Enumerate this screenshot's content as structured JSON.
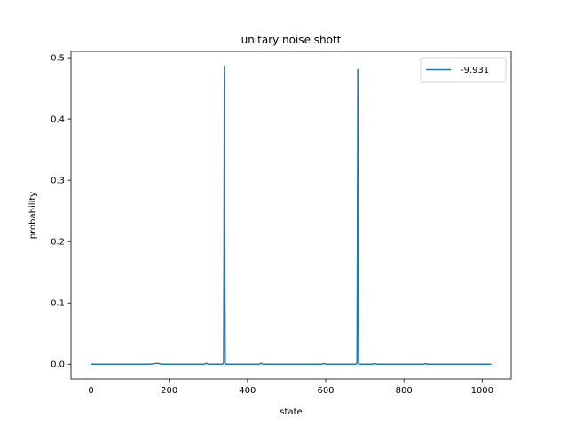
{
  "chart_data": {
    "type": "line",
    "title": "unitary noise shott",
    "xlabel": "state",
    "ylabel": "probability",
    "xlim": [
      -51.15,
      1074.15
    ],
    "ylim": [
      -0.0243,
      0.5103
    ],
    "xticks": [
      0,
      200,
      400,
      600,
      800,
      1000
    ],
    "yticks": [
      0.0,
      0.1,
      0.2,
      0.3,
      0.4,
      0.5
    ],
    "xtick_labels": [
      "0",
      "200",
      "400",
      "600",
      "800",
      "1000"
    ],
    "ytick_labels": [
      "0.0",
      "0.1",
      "0.2",
      "0.3",
      "0.4",
      "0.5"
    ],
    "legend_position": "top-right",
    "grid": false,
    "series": [
      {
        "name": "-9.931",
        "color": "#1f77b4",
        "x": [
          0,
          100,
          150,
          170,
          180,
          200,
          250,
          290,
          295,
          300,
          335,
          339,
          340,
          341,
          342,
          343,
          344,
          345,
          350,
          400,
          430,
          435,
          440,
          500,
          590,
          595,
          600,
          640,
          677,
          680,
          681,
          682,
          683,
          684,
          685,
          690,
          700,
          720,
          725,
          730,
          800,
          850,
          855,
          860,
          900,
          1023
        ],
        "y": [
          0.0,
          0.0,
          0.0,
          0.0015,
          0.0,
          0.0,
          0.0,
          0.0,
          0.0015,
          0.0,
          0.0,
          0.002,
          0.2,
          0.486,
          0.2,
          0.002,
          0.0,
          0.0,
          0.0,
          0.0,
          0.0,
          0.0015,
          0.0,
          0.0,
          0.0,
          0.0012,
          0.0,
          0.0,
          0.0,
          0.002,
          0.2,
          0.481,
          0.2,
          0.002,
          0.0,
          0.0,
          0.0,
          0.0,
          0.0012,
          0.0,
          0.0,
          0.0,
          0.001,
          0.0,
          0.0,
          0.0
        ]
      }
    ]
  }
}
